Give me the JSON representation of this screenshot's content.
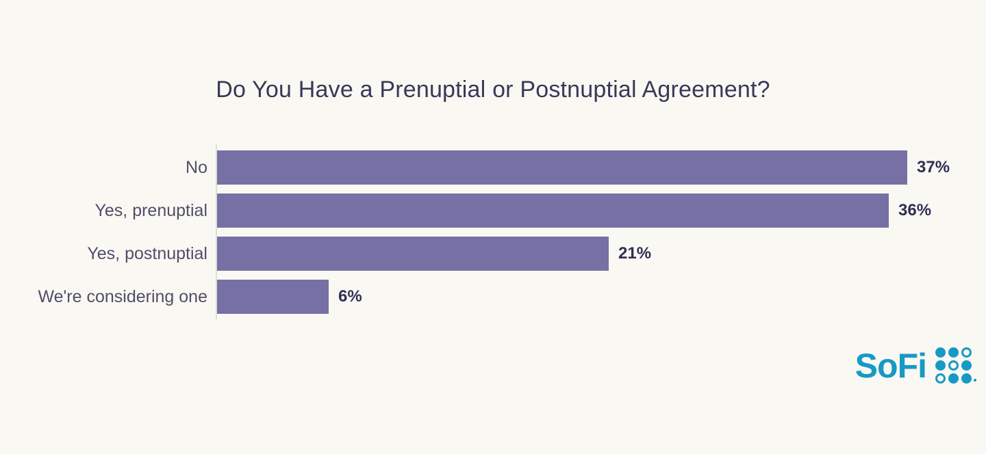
{
  "title": "Do You Have a Prenuptial or Postnuptial Agreement?",
  "chart_data": {
    "type": "bar",
    "orientation": "horizontal",
    "title": "Do You Have a Prenuptial or Postnuptial Agreement?",
    "categories": [
      "No",
      "Yes, prenuptial",
      "Yes, postnuptial",
      "We're considering one"
    ],
    "values": [
      37,
      36,
      21,
      6
    ],
    "value_labels": [
      "37%",
      "36%",
      "21%",
      "6%"
    ],
    "xlabel": "",
    "ylabel": "",
    "xlim": [
      0,
      37
    ],
    "grid": false,
    "legend": false,
    "bar_color": "#7670A5"
  },
  "colors": {
    "background": "#FAF8F3",
    "bar": "#7670A5",
    "title_text": "#3A3857",
    "category_label_text": "#514E68",
    "value_label_text": "#312E52",
    "axis_line": "#E0DDD5",
    "logo": "#1799C6"
  },
  "branding": {
    "logo_text": "SoFi",
    "logo_dot_pattern": [
      [
        "filled",
        "filled",
        "hollow"
      ],
      [
        "filled",
        "hollow",
        "filled"
      ],
      [
        "hollow",
        "filled",
        "filled"
      ]
    ]
  }
}
